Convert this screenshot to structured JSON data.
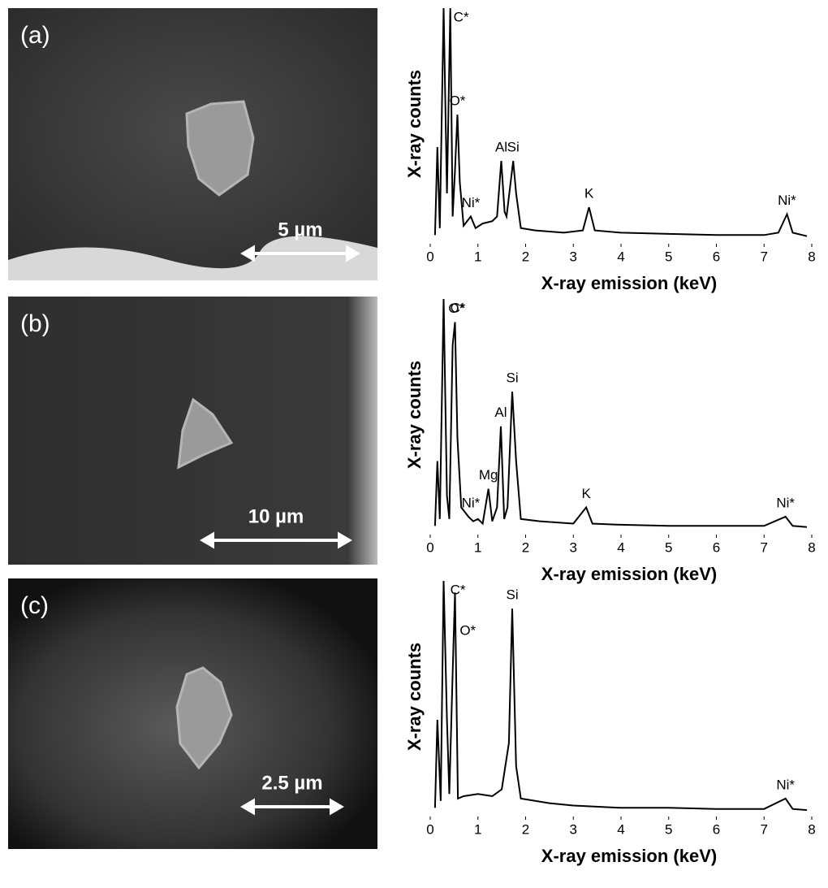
{
  "chart_data": [
    {
      "type": "line",
      "panel_label": "(a)",
      "scale_bar": "5 µm",
      "x_label": "X-ray emission (keV)",
      "y_label": "X-ray counts",
      "xlim": [
        0,
        8
      ],
      "xticks": [
        0,
        1,
        2,
        3,
        4,
        5,
        6,
        7,
        8
      ],
      "ylim": [
        0,
        100
      ],
      "color": "#000000",
      "x": [
        0.1,
        0.15,
        0.2,
        0.28,
        0.35,
        0.42,
        0.47,
        0.52,
        0.57,
        0.62,
        0.7,
        0.85,
        0.95,
        1.1,
        1.3,
        1.4,
        1.49,
        1.56,
        1.6,
        1.74,
        1.8,
        1.9,
        2.2,
        2.8,
        3.2,
        3.33,
        3.45,
        4,
        5,
        6,
        7,
        7.3,
        7.48,
        7.6,
        7.9
      ],
      "values": [
        2,
        40,
        5,
        100,
        20,
        100,
        10,
        30,
        54,
        25,
        6,
        10,
        5,
        7,
        8,
        10,
        34,
        12,
        10,
        34,
        20,
        5,
        4,
        3,
        4,
        14,
        4,
        3,
        2.5,
        2,
        2,
        3,
        11,
        3,
        1.5
      ],
      "annotations": [
        {
          "text": "C*",
          "x": 0.42
        },
        {
          "text": "O*",
          "x": 0.57
        },
        {
          "text": "Ni*",
          "x": 0.85
        },
        {
          "text": "Al",
          "x": 1.49
        },
        {
          "text": "Si",
          "x": 1.74
        },
        {
          "text": "K",
          "x": 3.33
        },
        {
          "text": "Ni*",
          "x": 7.48
        }
      ]
    },
    {
      "type": "line",
      "panel_label": "(b)",
      "scale_bar": "10 µm",
      "x_label": "X-ray emission (keV)",
      "y_label": "X-ray counts",
      "xlim": [
        0,
        8
      ],
      "xticks": [
        0,
        1,
        2,
        3,
        4,
        5,
        6,
        7,
        8
      ],
      "ylim": [
        0,
        100
      ],
      "color": "#000000",
      "x": [
        0.1,
        0.15,
        0.2,
        0.28,
        0.35,
        0.4,
        0.47,
        0.52,
        0.57,
        0.65,
        0.8,
        0.9,
        1.0,
        1.1,
        1.22,
        1.3,
        1.4,
        1.48,
        1.55,
        1.62,
        1.72,
        1.8,
        1.9,
        2.3,
        3.0,
        3.27,
        3.4,
        4,
        5,
        6,
        7,
        7.45,
        7.6,
        7.9
      ],
      "values": [
        2,
        30,
        5,
        100,
        15,
        5,
        80,
        90,
        40,
        10,
        6,
        4,
        5,
        3,
        18,
        4,
        10,
        45,
        5,
        10,
        60,
        30,
        5,
        4,
        3,
        10,
        3,
        2.5,
        2,
        2,
        2,
        6,
        2,
        1.5
      ],
      "annotations": [
        {
          "text": "C*",
          "x": 0.35
        },
        {
          "text": "O*",
          "x": 0.55
        },
        {
          "text": "Ni*",
          "x": 0.85
        },
        {
          "text": "Mg",
          "x": 1.22
        },
        {
          "text": "Al",
          "x": 1.48
        },
        {
          "text": "Si",
          "x": 1.72
        },
        {
          "text": "K",
          "x": 3.27
        },
        {
          "text": "Ni*",
          "x": 7.45
        }
      ]
    },
    {
      "type": "line",
      "panel_label": "(c)",
      "scale_bar": "2.5 µm",
      "x_label": "X-ray emission (keV)",
      "y_label": "X-ray counts",
      "xlim": [
        0,
        8
      ],
      "xticks": [
        0,
        1,
        2,
        3,
        4,
        5,
        6,
        7,
        8
      ],
      "ylim": [
        0,
        100
      ],
      "color": "#000000",
      "x": [
        0.1,
        0.15,
        0.22,
        0.28,
        0.35,
        0.4,
        0.47,
        0.52,
        0.58,
        0.7,
        1.0,
        1.3,
        1.5,
        1.65,
        1.72,
        1.8,
        1.9,
        2.5,
        3,
        4,
        5,
        6,
        7,
        7.45,
        7.6,
        7.9
      ],
      "values": [
        2,
        40,
        5,
        100,
        40,
        8,
        60,
        95,
        6,
        7,
        8,
        7,
        10,
        30,
        88,
        20,
        6,
        4,
        3,
        2,
        2,
        1.5,
        1.5,
        6,
        1.5,
        1
      ],
      "annotations": [
        {
          "text": "C*",
          "x": 0.35
        },
        {
          "text": "O*",
          "x": 0.55
        },
        {
          "text": "Si",
          "x": 1.72
        },
        {
          "text": "Ni*",
          "x": 7.45
        }
      ]
    }
  ]
}
